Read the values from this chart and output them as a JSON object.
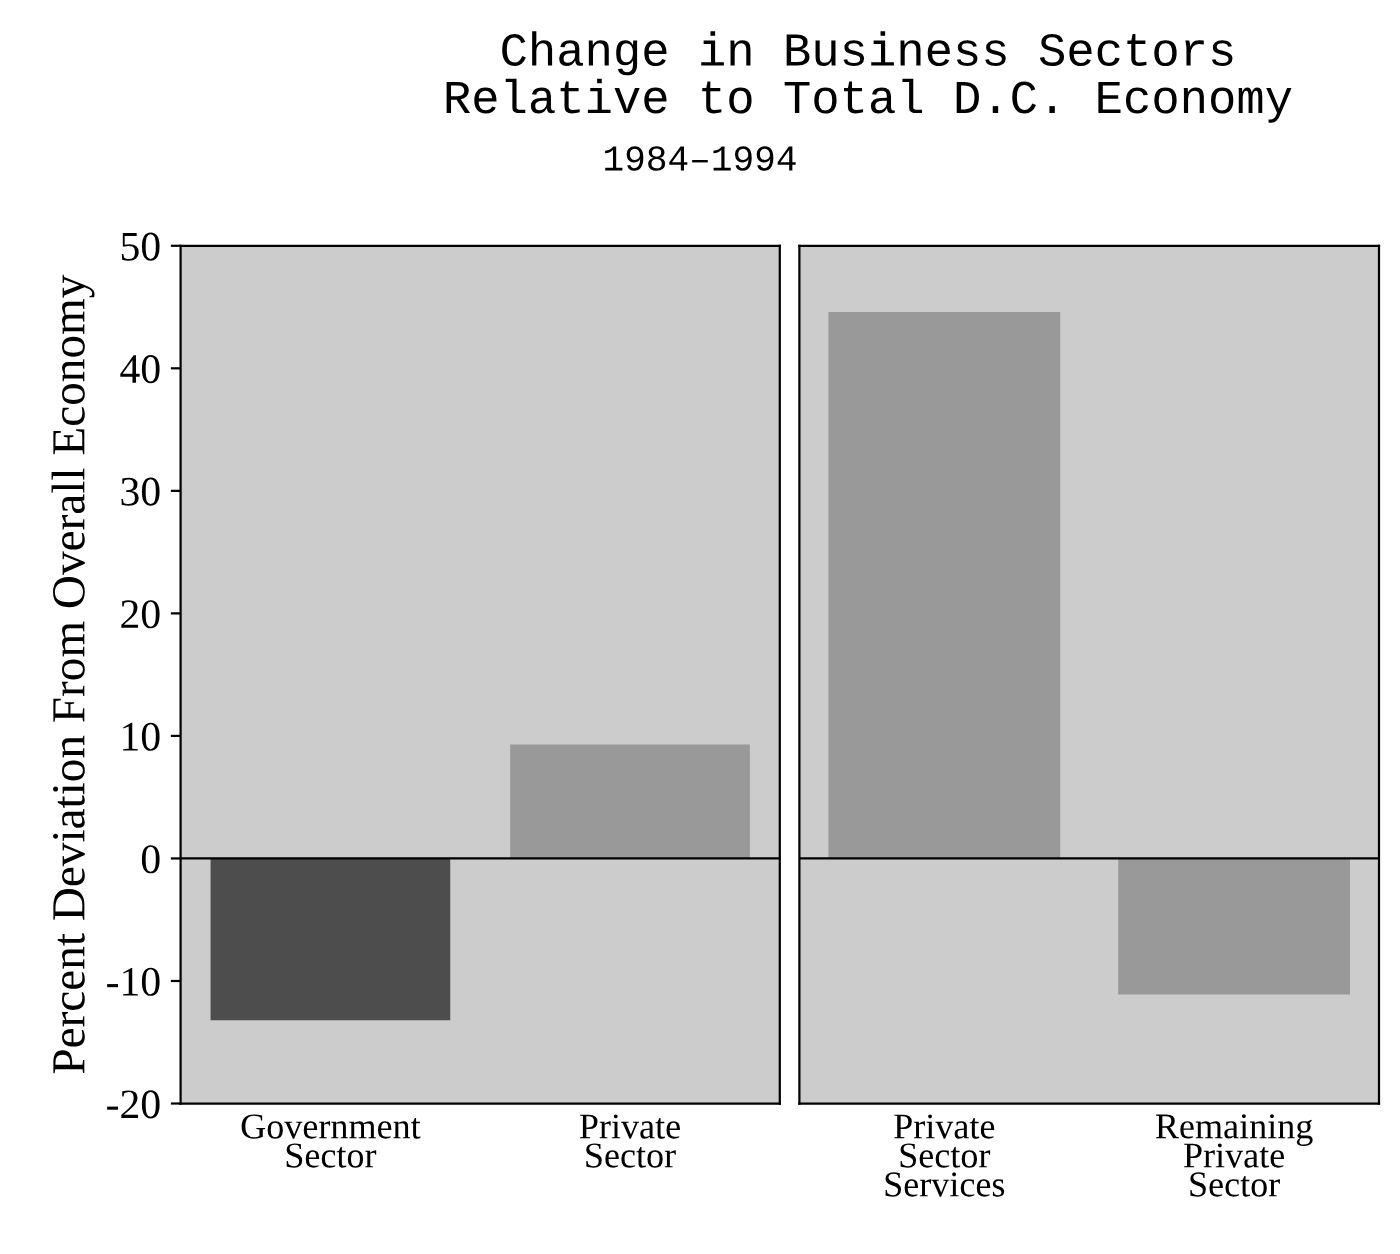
{
  "chart_data": [
    {
      "type": "bar",
      "title": "Change in Business Sectors\nRelative to Total D.C. Economy",
      "subtitle": "1984–1994",
      "ylabel": "Percent Deviation From Overall Economy",
      "categories": [
        "Government\nSector",
        "Private\nSector"
      ],
      "values": [
        -13.2,
        9.3
      ],
      "colors": [
        "#4d4d4d",
        "#999999"
      ],
      "ylim": [
        -20,
        50
      ],
      "yticks": [
        -20,
        -10,
        0,
        10,
        20,
        30,
        40,
        50
      ],
      "ref_lines": [
        {
          "axis": "y",
          "value": 0
        }
      ],
      "grid": false,
      "legend": false
    },
    {
      "type": "bar",
      "categories": [
        "Private\nSector\nServices",
        "Remaining\nPrivate\nSector"
      ],
      "values": [
        44.6,
        -11.1
      ],
      "colors": [
        "#999999",
        "#999999"
      ],
      "ylim": [
        -20,
        50
      ],
      "yticks": [
        -20,
        -10,
        0,
        10,
        20,
        30,
        40,
        50
      ],
      "ref_lines": [
        {
          "axis": "y",
          "value": 0
        }
      ],
      "tick_labels": "x",
      "grid": false,
      "legend": false
    }
  ]
}
